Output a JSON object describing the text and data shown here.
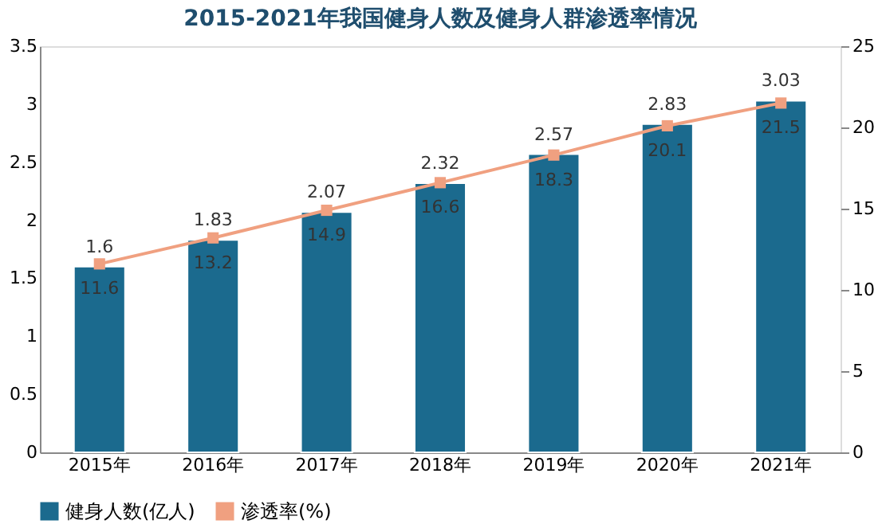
{
  "chart_data": {
    "type": "bar",
    "title": "2015-2021年我国健身人数及健身人群渗透率情况",
    "categories": [
      "2015年",
      "2016年",
      "2017年",
      "2018年",
      "2019年",
      "2020年",
      "2021年"
    ],
    "series": [
      {
        "name": "健身人数(亿人)",
        "color": "#1b6a8e",
        "values": [
          1.6,
          1.83,
          2.07,
          2.32,
          2.57,
          2.83,
          3.03
        ]
      },
      {
        "name": "渗透率(%)",
        "type": "line",
        "axis": "y2",
        "color": "#f0a080",
        "marker": "square",
        "values": [
          11.6,
          13.2,
          14.9,
          16.6,
          18.3,
          20.1,
          21.5
        ]
      }
    ],
    "ylim": [
      0,
      3.5
    ],
    "yticks": [
      0,
      0.5,
      1,
      1.5,
      2,
      2.5,
      3,
      3.5
    ],
    "y2lim": [
      0,
      25
    ],
    "y2ticks": [
      0,
      5,
      10,
      15,
      20,
      25
    ],
    "data_labels": true,
    "legend": "bottom"
  }
}
